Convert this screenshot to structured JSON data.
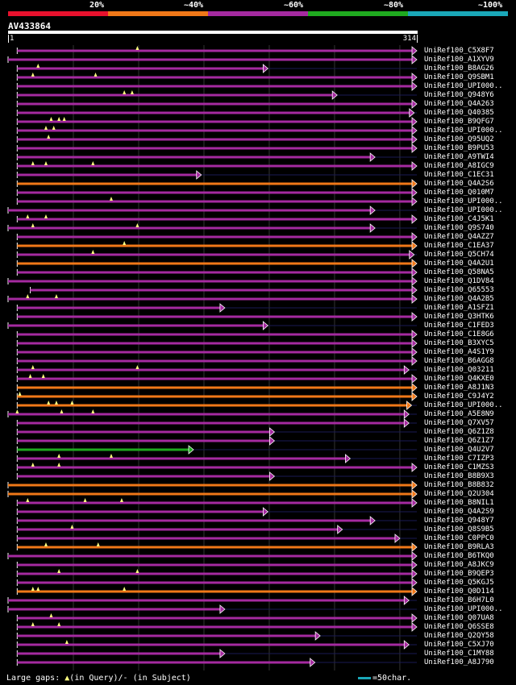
{
  "colors": {
    "band_20": "#e8112d",
    "band_40": "#f07818",
    "band_60": "#a52aa0",
    "band_80": "#1faa1f",
    "band_100": "#1aa7b8",
    "query_gap": "#ffff80",
    "grid": "#333333"
  },
  "scale": {
    "ticks": [
      "20%",
      "~40%",
      "~60%",
      "~80%",
      "~100%"
    ]
  },
  "query": {
    "id": "AV433864",
    "start": "1",
    "end": "314",
    "length": 314
  },
  "footer": {
    "large_gaps": "Large gaps:",
    "in_query": "(in Query)/",
    "dash": "-",
    "in_subject": " (in Subject)",
    "scale_label": "=50char."
  },
  "hits": [
    {
      "label": "UniRef100_C5X8F7",
      "start": 8,
      "end": 314,
      "band": "60",
      "gaps": [
        100
      ]
    },
    {
      "label": "UniRef100_A1XYV9",
      "start": 1,
      "end": 314,
      "band": "60",
      "gaps": []
    },
    {
      "label": "UniRef100_B8AG26",
      "start": 8,
      "end": 200,
      "band": "60",
      "gaps": [
        24
      ]
    },
    {
      "label": "UniRef100_Q9SBM1",
      "start": 8,
      "end": 314,
      "band": "60",
      "gaps": [
        20,
        68
      ]
    },
    {
      "label": "UniRef100_UPI000..",
      "start": 8,
      "end": 314,
      "band": "60",
      "gaps": []
    },
    {
      "label": "UniRef100_Q948Y6",
      "start": 8,
      "end": 253,
      "band": "60",
      "gaps": [
        90,
        96
      ]
    },
    {
      "label": "UniRef100_Q4A263",
      "start": 8,
      "end": 314,
      "band": "60",
      "gaps": []
    },
    {
      "label": "UniRef100_Q40385",
      "start": 8,
      "end": 312,
      "band": "60",
      "gaps": []
    },
    {
      "label": "UniRef100_B9QFG7",
      "start": 8,
      "end": 314,
      "band": "60",
      "gaps": [
        34,
        40,
        44
      ]
    },
    {
      "label": "UniRef100_UPI000..",
      "start": 8,
      "end": 314,
      "band": "60",
      "gaps": [
        30,
        36
      ]
    },
    {
      "label": "UniRef100_Q95UQ2",
      "start": 8,
      "end": 314,
      "band": "60",
      "gaps": [
        32
      ]
    },
    {
      "label": "UniRef100_B9PU53",
      "start": 8,
      "end": 314,
      "band": "60",
      "gaps": []
    },
    {
      "label": "UniRef100_A9TWI4",
      "start": 8,
      "end": 282,
      "band": "60",
      "gaps": []
    },
    {
      "label": "UniRef100_A8IGC9",
      "start": 8,
      "end": 314,
      "band": "60",
      "gaps": [
        20,
        30,
        66
      ]
    },
    {
      "label": "UniRef100_C1EC31",
      "start": 8,
      "end": 149,
      "band": "60",
      "gaps": []
    },
    {
      "label": "UniRef100_Q4A2S6",
      "start": 8,
      "end": 314,
      "band": "40",
      "gaps": []
    },
    {
      "label": "UniRef100_Q010M7",
      "start": 8,
      "end": 314,
      "band": "60",
      "gaps": []
    },
    {
      "label": "UniRef100_UPI000..",
      "start": 8,
      "end": 314,
      "band": "60",
      "gaps": [
        80
      ]
    },
    {
      "label": "UniRef100_UPI000..",
      "start": 1,
      "end": 282,
      "band": "60",
      "gaps": []
    },
    {
      "label": "UniRef100_C4J5K1",
      "start": 8,
      "end": 314,
      "band": "60",
      "gaps": [
        16,
        30
      ]
    },
    {
      "label": "UniRef100_Q9S740",
      "start": 1,
      "end": 282,
      "band": "60",
      "gaps": [
        20,
        100
      ]
    },
    {
      "label": "UniRef100_Q4AZZ7",
      "start": 8,
      "end": 314,
      "band": "60",
      "gaps": []
    },
    {
      "label": "UniRef100_C1EA37",
      "start": 8,
      "end": 314,
      "band": "40",
      "gaps": [
        90
      ]
    },
    {
      "label": "UniRef100_Q5CH74",
      "start": 8,
      "end": 312,
      "band": "60",
      "gaps": [
        66
      ]
    },
    {
      "label": "UniRef100_Q4A2U1",
      "start": 8,
      "end": 314,
      "band": "40",
      "gaps": []
    },
    {
      "label": "UniRef100_Q58NA5",
      "start": 8,
      "end": 314,
      "band": "60",
      "gaps": []
    },
    {
      "label": "UniRef100_Q1DV84",
      "start": 1,
      "end": 314,
      "band": "60",
      "gaps": []
    },
    {
      "label": "UniRef100_Q65553",
      "start": 18,
      "end": 314,
      "band": "60",
      "gaps": []
    },
    {
      "label": "UniRef100_Q4A2B5",
      "start": 1,
      "end": 314,
      "band": "60",
      "gaps": [
        16,
        38
      ]
    },
    {
      "label": "UniRef100_A1SFZ1",
      "start": 8,
      "end": 167,
      "band": "60",
      "gaps": []
    },
    {
      "label": "UniRef100_Q3HTK6",
      "start": 8,
      "end": 314,
      "band": "60",
      "gaps": []
    },
    {
      "label": "UniRef100_C1FED3",
      "start": 1,
      "end": 200,
      "band": "60",
      "gaps": []
    },
    {
      "label": "UniRef100_C1E8G6",
      "start": 8,
      "end": 314,
      "band": "60",
      "gaps": []
    },
    {
      "label": "UniRef100_B3XYC5",
      "start": 8,
      "end": 314,
      "band": "60",
      "gaps": []
    },
    {
      "label": "UniRef100_A4S1Y9",
      "start": 8,
      "end": 314,
      "band": "60",
      "gaps": []
    },
    {
      "label": "UniRef100_B6AGG8",
      "start": 8,
      "end": 314,
      "band": "60",
      "gaps": []
    },
    {
      "label": "UniRef100_Q03211",
      "start": 8,
      "end": 308,
      "band": "60",
      "gaps": [
        20,
        100
      ]
    },
    {
      "label": "UniRef100_Q4KXE0",
      "start": 8,
      "end": 314,
      "band": "60",
      "gaps": [
        18,
        28
      ]
    },
    {
      "label": "UniRef100_A8J1N3",
      "start": 8,
      "end": 314,
      "band": "40",
      "gaps": []
    },
    {
      "label": "UniRef100_C9J4Y2",
      "start": 8,
      "end": 314,
      "band": "40",
      "gaps": [
        10
      ]
    },
    {
      "label": "UniRef100_UPI000..",
      "start": 8,
      "end": 310,
      "band": "40",
      "gaps": [
        32,
        38,
        50
      ]
    },
    {
      "label": "UniRef100_A5E8N9",
      "start": 1,
      "end": 308,
      "band": "60",
      "gaps": [
        8,
        42,
        66
      ]
    },
    {
      "label": "UniRef100_Q7XV57",
      "start": 8,
      "end": 308,
      "band": "60",
      "gaps": []
    },
    {
      "label": "UniRef100_Q6Z1Z8",
      "start": 8,
      "end": 205,
      "band": "60",
      "gaps": []
    },
    {
      "label": "UniRef100_Q6Z1Z7",
      "start": 8,
      "end": 205,
      "band": "60",
      "gaps": []
    },
    {
      "label": "UniRef100_Q4U2V7",
      "start": 8,
      "end": 143,
      "band": "80",
      "gaps": []
    },
    {
      "label": "UniRef100_C7IZP3",
      "start": 8,
      "end": 263,
      "band": "60",
      "gaps": [
        40,
        80
      ]
    },
    {
      "label": "UniRef100_C1MZS3",
      "start": 8,
      "end": 314,
      "band": "60",
      "gaps": [
        20,
        40
      ]
    },
    {
      "label": "UniRef100_B8B9X3",
      "start": 8,
      "end": 205,
      "band": "60",
      "gaps": []
    },
    {
      "label": "UniRef100_B8B832",
      "start": 1,
      "end": 314,
      "band": "40",
      "gaps": []
    },
    {
      "label": "UniRef100_Q2U304",
      "start": 1,
      "end": 314,
      "band": "40",
      "gaps": []
    },
    {
      "label": "UniRef100_B8NIL1",
      "start": 8,
      "end": 314,
      "band": "60",
      "gaps": [
        16,
        60,
        88
      ]
    },
    {
      "label": "UniRef100_Q4A2S9",
      "start": 8,
      "end": 200,
      "band": "60",
      "gaps": []
    },
    {
      "label": "UniRef100_Q948Y7",
      "start": 8,
      "end": 282,
      "band": "60",
      "gaps": []
    },
    {
      "label": "UniRef100_Q8S9B5",
      "start": 8,
      "end": 257,
      "band": "60",
      "gaps": [
        50
      ]
    },
    {
      "label": "UniRef100_C0PPC0",
      "start": 8,
      "end": 301,
      "band": "60",
      "gaps": []
    },
    {
      "label": "UniRef100_B9RLA3",
      "start": 8,
      "end": 314,
      "band": "40",
      "gaps": [
        30,
        70
      ]
    },
    {
      "label": "UniRef100_B6TKQ0",
      "start": 1,
      "end": 314,
      "band": "60",
      "gaps": []
    },
    {
      "label": "UniRef100_A8JKC9",
      "start": 8,
      "end": 314,
      "band": "60",
      "gaps": []
    },
    {
      "label": "UniRef100_B9QEP3",
      "start": 8,
      "end": 314,
      "band": "60",
      "gaps": [
        40,
        100
      ]
    },
    {
      "label": "UniRef100_Q5KGJ5",
      "start": 8,
      "end": 314,
      "band": "60",
      "gaps": []
    },
    {
      "label": "UniRef100_Q0D114",
      "start": 8,
      "end": 314,
      "band": "40",
      "gaps": [
        20,
        24,
        90
      ]
    },
    {
      "label": "UniRef100_B6H7L0",
      "start": 1,
      "end": 308,
      "band": "60",
      "gaps": []
    },
    {
      "label": "UniRef100_UPI000..",
      "start": 1,
      "end": 167,
      "band": "60",
      "gaps": []
    },
    {
      "label": "UniRef100_Q07UA8",
      "start": 8,
      "end": 314,
      "band": "60",
      "gaps": [
        34
      ]
    },
    {
      "label": "UniRef100_Q6SSE8",
      "start": 8,
      "end": 314,
      "band": "60",
      "gaps": [
        20,
        40
      ]
    },
    {
      "label": "UniRef100_Q2QY58",
      "start": 8,
      "end": 240,
      "band": "60",
      "gaps": []
    },
    {
      "label": "UniRef100_C5XJ70",
      "start": 8,
      "end": 308,
      "band": "60",
      "gaps": [
        46
      ]
    },
    {
      "label": "UniRef100_C1MY88",
      "start": 8,
      "end": 167,
      "band": "60",
      "gaps": []
    },
    {
      "label": "UniRef100_A8J790",
      "start": 8,
      "end": 236,
      "band": "60",
      "gaps": []
    }
  ]
}
